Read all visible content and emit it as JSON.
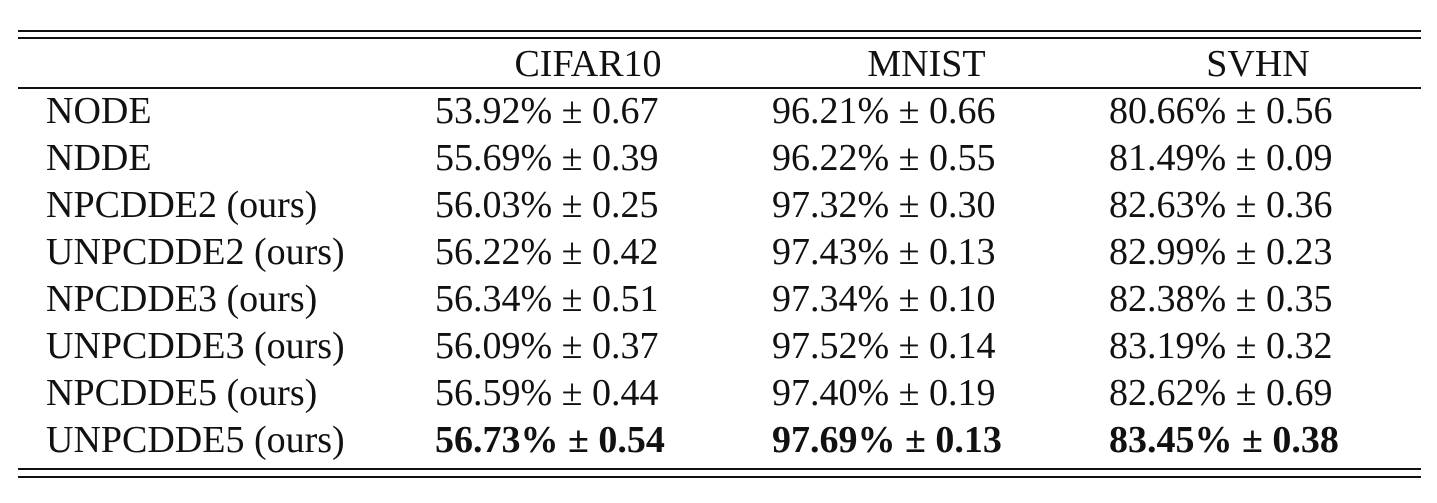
{
  "table": {
    "columns": [
      "",
      "CIFAR10",
      "MNIST",
      "SVHN"
    ],
    "rows": [
      {
        "method": "NODE",
        "cifar10": "53.92% ± 0.67",
        "mnist": "96.21% ± 0.66",
        "svhn": "80.66% ± 0.56"
      },
      {
        "method": "NDDE",
        "cifar10": "55.69% ± 0.39",
        "mnist": "96.22% ± 0.55",
        "svhn": "81.49% ± 0.09"
      },
      {
        "method": "NPCDDE2 (ours)",
        "cifar10": "56.03% ± 0.25",
        "mnist": "97.32% ± 0.30",
        "svhn": "82.63% ± 0.36"
      },
      {
        "method": "UNPCDDE2 (ours)",
        "cifar10": "56.22% ± 0.42",
        "mnist": "97.43% ± 0.13",
        "svhn": "82.99% ± 0.23"
      },
      {
        "method": "NPCDDE3 (ours)",
        "cifar10": "56.34% ± 0.51",
        "mnist": "97.34% ± 0.10",
        "svhn": "82.38% ± 0.35"
      },
      {
        "method": "UNPCDDE3 (ours)",
        "cifar10": "56.09% ± 0.37",
        "mnist": "97.52% ± 0.14",
        "svhn": "83.19% ± 0.32"
      },
      {
        "method": "NPCDDE5 (ours)",
        "cifar10": "56.59% ± 0.44",
        "mnist": "97.40% ± 0.19",
        "svhn": "82.62% ± 0.69"
      },
      {
        "method": "UNPCDDE5 (ours)",
        "cifar10": "56.73% ± 0.54",
        "mnist": "97.69% ± 0.13",
        "svhn": "83.45% ± 0.38"
      }
    ],
    "bold_row_index": 7
  }
}
